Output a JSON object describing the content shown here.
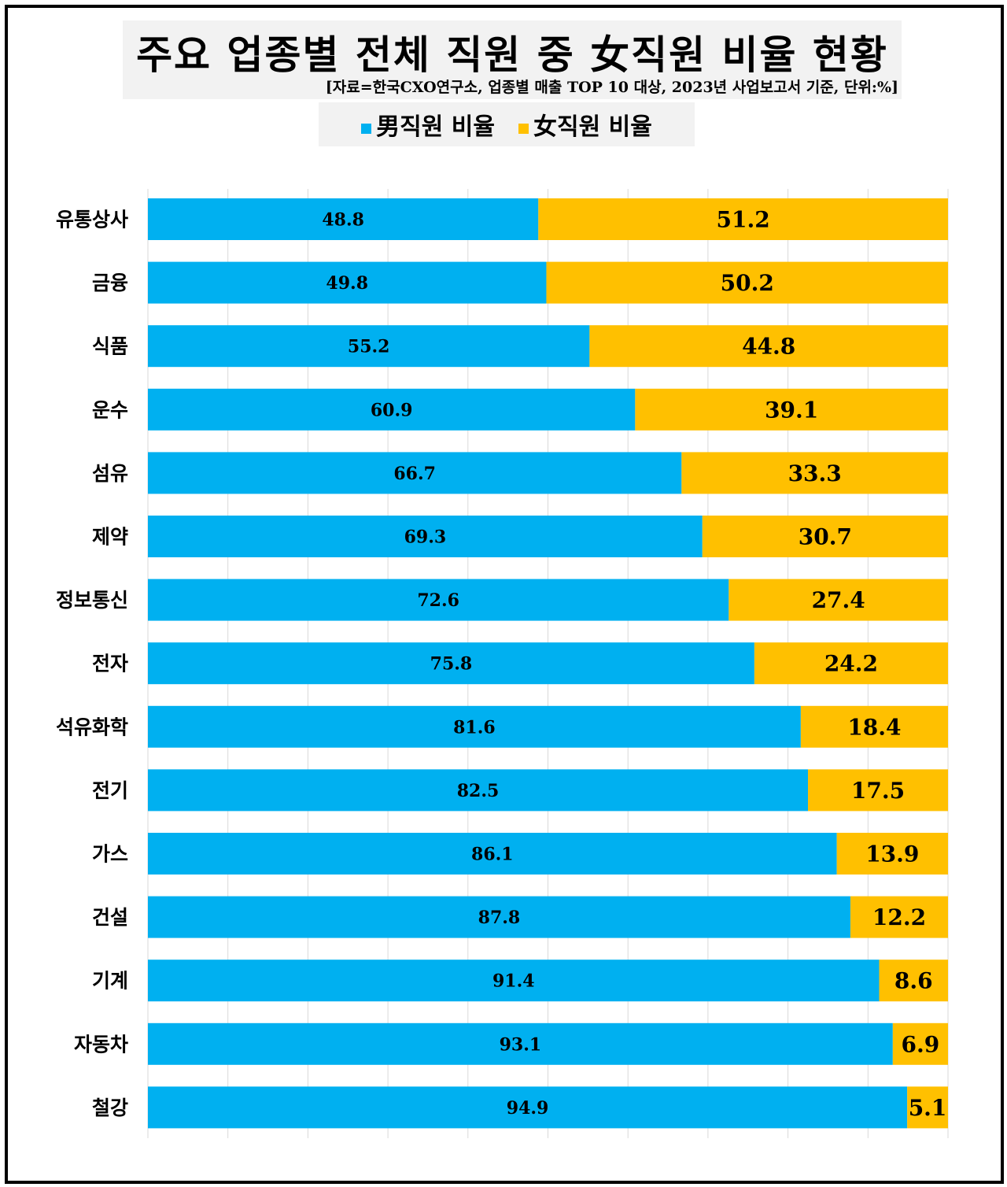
{
  "chart_data": {
    "type": "bar",
    "orientation": "horizontal",
    "stacked": true,
    "title": "주요 업종별 전체 직원 중 女직원 비율 현황",
    "subtitle": "[자료=한국CXO연구소, 업종별 매출 TOP 10 대상, 2023년 사업보고서 기준, 단위:%]",
    "categories": [
      "유통상사",
      "금융",
      "식품",
      "운수",
      "섬유",
      "제약",
      "정보통신",
      "전자",
      "석유화학",
      "전기",
      "가스",
      "건설",
      "기계",
      "자동차",
      "철강"
    ],
    "series": [
      {
        "name": "男직원 비율",
        "color": "#00b0f0",
        "values": [
          48.8,
          49.8,
          55.2,
          60.9,
          66.7,
          69.3,
          72.6,
          75.8,
          81.6,
          82.5,
          86.1,
          87.8,
          91.4,
          93.1,
          94.9
        ]
      },
      {
        "name": "女직원 비율",
        "color": "#ffc000",
        "values": [
          51.2,
          50.2,
          44.8,
          39.1,
          33.3,
          30.7,
          27.4,
          24.2,
          18.4,
          17.5,
          13.9,
          12.2,
          8.6,
          6.9,
          5.1
        ]
      }
    ],
    "xlim": [
      0,
      100
    ],
    "grid": true,
    "legend": "top"
  }
}
